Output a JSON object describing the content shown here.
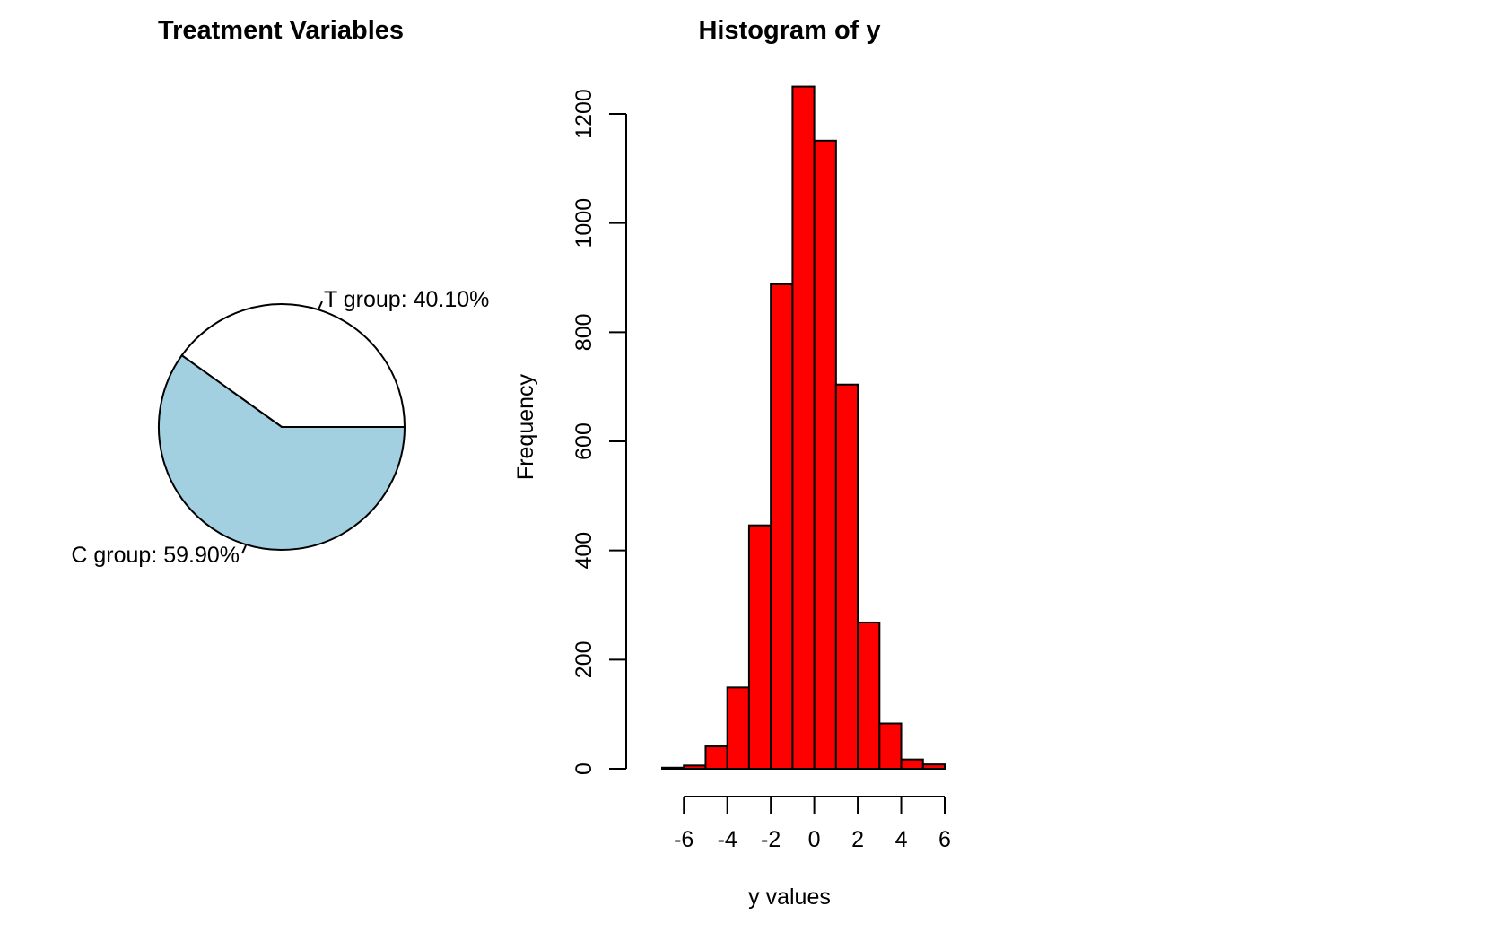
{
  "chart_data": [
    {
      "type": "pie",
      "title": "Treatment Variables",
      "slices": [
        {
          "label": "T group: 40.10%",
          "value": 40.1,
          "color": "#ffffff"
        },
        {
          "label": "C group: 59.90%",
          "value": 59.9,
          "color": "#a2d0e0"
        }
      ]
    },
    {
      "type": "bar",
      "subtype": "histogram",
      "title": "Histogram of y",
      "xlabel": "y values",
      "ylabel": "Frequency",
      "bar_color": "#ff0000",
      "bins": [
        {
          "x0": -7,
          "x1": -6,
          "count": 2
        },
        {
          "x0": -6,
          "x1": -5,
          "count": 6
        },
        {
          "x0": -5,
          "x1": -4,
          "count": 41
        },
        {
          "x0": -4,
          "x1": -3,
          "count": 149
        },
        {
          "x0": -3,
          "x1": -2,
          "count": 446
        },
        {
          "x0": -2,
          "x1": -1,
          "count": 888
        },
        {
          "x0": -1,
          "x1": 0,
          "count": 1250
        },
        {
          "x0": 0,
          "x1": 1,
          "count": 1151
        },
        {
          "x0": 1,
          "x1": 2,
          "count": 704
        },
        {
          "x0": 2,
          "x1": 3,
          "count": 268
        },
        {
          "x0": 3,
          "x1": 4,
          "count": 83
        },
        {
          "x0": 4,
          "x1": 5,
          "count": 17
        },
        {
          "x0": 5,
          "x1": 6,
          "count": 8
        }
      ],
      "xticks": [
        -6,
        -4,
        -2,
        0,
        2,
        4,
        6
      ],
      "yticks": [
        0,
        200,
        400,
        600,
        800,
        1000,
        1200
      ],
      "xlim": [
        -7,
        6
      ],
      "ylim": [
        0,
        1250
      ]
    }
  ]
}
